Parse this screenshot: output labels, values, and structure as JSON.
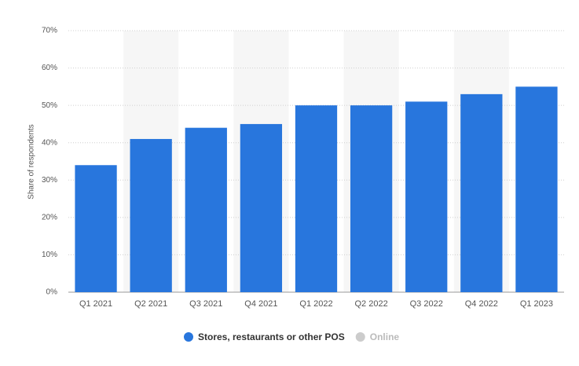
{
  "chart_data": {
    "type": "bar",
    "y_label": "Share of respondents",
    "categories": [
      "Q1 2021",
      "Q2 2021",
      "Q3 2021",
      "Q4 2021",
      "Q1 2022",
      "Q2 2022",
      "Q3 2022",
      "Q4 2022",
      "Q1 2023"
    ],
    "series": [
      {
        "name": "Stores, restaurants or other POS",
        "color": "#2876dd",
        "values": [
          34,
          41,
          44,
          45,
          50,
          50,
          51,
          53,
          55
        ]
      },
      {
        "name": "Online",
        "color": "#cccccc",
        "hidden": true
      }
    ],
    "ylim": [
      0,
      70
    ],
    "yticks": [
      {
        "value": 0,
        "label": "0%"
      },
      {
        "value": 10,
        "label": "10%"
      },
      {
        "value": 20,
        "label": "20%"
      },
      {
        "value": 30,
        "label": "30%"
      },
      {
        "value": 40,
        "label": "40%"
      },
      {
        "value": 50,
        "label": "50%"
      },
      {
        "value": 60,
        "label": "60%"
      },
      {
        "value": 70,
        "label": "70%"
      }
    ],
    "grid": true
  }
}
